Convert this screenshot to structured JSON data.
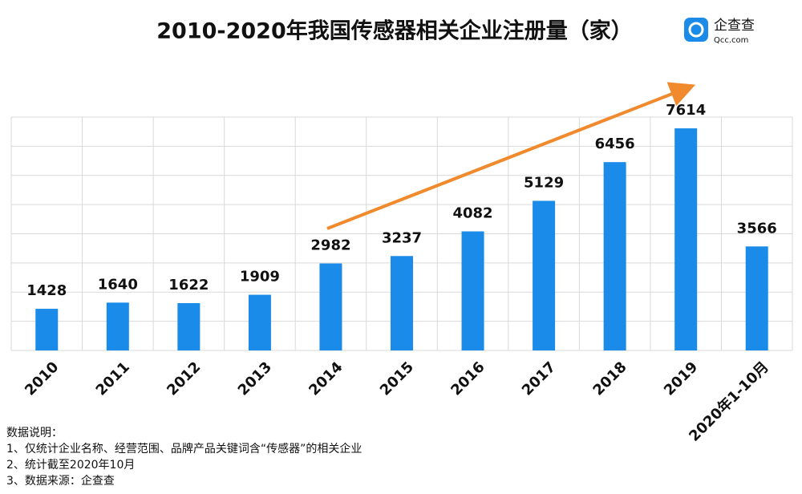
{
  "chart_data": {
    "type": "bar",
    "title": "2010-2020年我国传感器相关企业注册量（家）",
    "categories": [
      "2010",
      "2011",
      "2012",
      "2013",
      "2014",
      "2015",
      "2016",
      "2017",
      "2018",
      "2019",
      "2020年1-10月"
    ],
    "values": [
      1428,
      1640,
      1622,
      1909,
      2982,
      3237,
      4082,
      5129,
      6456,
      7614,
      3566
    ],
    "color": "#1a8be8",
    "ylim": [
      0,
      8000
    ],
    "yticks": [
      0,
      1000,
      2000,
      3000,
      4000,
      5000,
      6000,
      7000,
      8000
    ],
    "grid": true
  },
  "logo": {
    "name": "企查查",
    "domain": "Qcc.com"
  },
  "notes": {
    "heading": "数据说明：",
    "lines": [
      "1、仅统计企业名称、经营范围、品牌产品关键词含“传感器”的相关企业",
      "2、统计截至2020年10月",
      "3、数据来源：企查查"
    ]
  }
}
